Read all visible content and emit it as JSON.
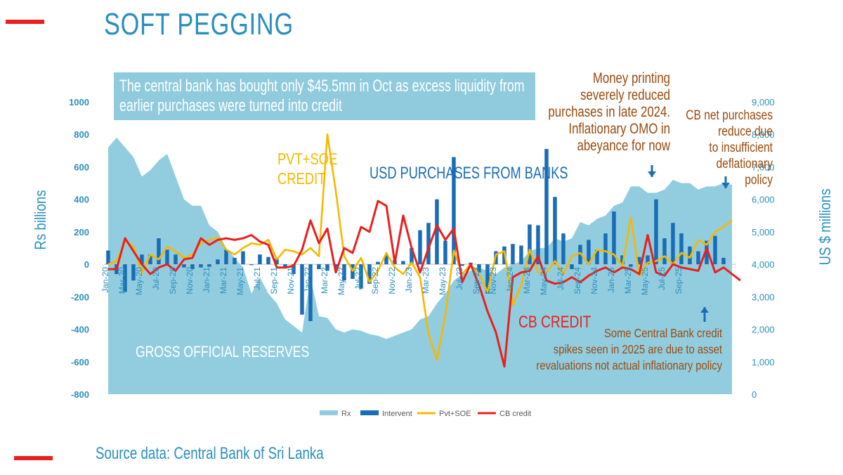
{
  "page": {
    "title": "SOFT PEGGING",
    "callout": "The central bank has bought only $45.5mn in Oct as excess liquidity from earlier purchases were turned into credit",
    "source": "Source data: Central Bank of Sri Lanka",
    "accent_red": "#e8201e",
    "accent_blue": "#2a8fbd"
  },
  "chart_data": {
    "type": "combo",
    "title": "SOFT PEGGING",
    "ylabel_left": "Rs billions",
    "ylabel_right": "US $ millions",
    "ylim_left": [
      -800,
      1000
    ],
    "ylim_right": [
      0,
      9000
    ],
    "yticks_left": [
      "1000",
      "800",
      "600",
      "400",
      "200",
      "0",
      "-200",
      "-400",
      "-600",
      "-800"
    ],
    "yticks_right": [
      "9,000",
      "8,000",
      "7,000",
      "6,000",
      "5,000",
      "4,000",
      "3,000",
      "2,000",
      "1,000",
      "0"
    ],
    "x_tick_labels": [
      "Jan-20",
      "Mar-20",
      "May-20",
      "Jul-20",
      "Sep-20",
      "Nov-20",
      "Jan-21",
      "Mar-21",
      "May-21",
      "Jul-21",
      "Sep-21",
      "Nov-21",
      "Jan-22",
      "Mar-22",
      "May-22",
      "Jul-22",
      "Sep-22",
      "Nov-22",
      "Jan-23",
      "Mar-23",
      "May-23",
      "Jul-23",
      "Sep-23",
      "Nov-23",
      "Jan-24",
      "Mar-24",
      "May-24",
      "Jul-24",
      "Sep-24",
      "Nov-24",
      "Jan-25",
      "Mar-25",
      "May-25",
      "Jul-25",
      "Sep-25"
    ],
    "series": [
      {
        "name": "Rx",
        "axis": "right",
        "type": "area",
        "color": "#92cddf",
        "values": [
          7600,
          7900,
          7600,
          7300,
          6700,
          6900,
          7200,
          7400,
          6700,
          6000,
          5800,
          5800,
          5200,
          5000,
          4500,
          4200,
          3900,
          3100,
          3600,
          3100,
          2800,
          2300,
          2100,
          1900,
          3600,
          2400,
          2350,
          2000,
          1900,
          2000,
          1950,
          1850,
          1800,
          1700,
          1800,
          1900,
          2000,
          2300,
          2400,
          2800,
          3100,
          3500,
          3700,
          3800,
          3900,
          3800,
          3700,
          3900,
          4000,
          4100,
          4400,
          4500,
          4500,
          4800,
          4700,
          4800,
          5300,
          5200,
          5400,
          5500,
          5800,
          5900,
          6400,
          6400,
          6200,
          6200,
          6300,
          6600,
          6500,
          6500,
          6300,
          6400,
          6400,
          6500,
          6450
        ]
      },
      {
        "name": "Intervent",
        "axis": "left",
        "type": "bar",
        "color": "#1a6db5",
        "values": [
          85,
          -60,
          -170,
          -100,
          60,
          60,
          160,
          90,
          60,
          -20,
          -30,
          -20,
          -15,
          30,
          90,
          40,
          80,
          -5,
          60,
          45,
          35,
          -25,
          -60,
          -310,
          -350,
          -30,
          -40,
          -20,
          -100,
          -90,
          -150,
          -120,
          15,
          60,
          25,
          20,
          100,
          210,
          255,
          400,
          145,
          660,
          -10,
          10,
          -50,
          -180,
          80,
          110,
          125,
          115,
          245,
          240,
          710,
          415,
          190,
          -30,
          120,
          150,
          90,
          190,
          325,
          55,
          -15,
          45,
          55,
          400,
          160,
          255,
          190,
          110,
          80,
          145,
          175,
          40
        ]
      },
      {
        "name": "Pvt+SOE",
        "axis": "left",
        "type": "line",
        "color": "#f5b800",
        "values": [
          0,
          20,
          140,
          110,
          -55,
          60,
          30,
          110,
          80,
          40,
          60,
          130,
          150,
          165,
          90,
          60,
          100,
          130,
          120,
          150,
          30,
          90,
          80,
          60,
          100,
          50,
          800,
          450,
          50,
          -40,
          40,
          -110,
          -40,
          70,
          -20,
          -60,
          10,
          -80,
          -430,
          -590,
          -310,
          85,
          -60,
          0,
          -60,
          -170,
          60,
          80,
          -250,
          -130,
          90,
          -50,
          -50,
          20,
          -60,
          50,
          70,
          0,
          90,
          80,
          60,
          -10,
          290,
          -70,
          10,
          20,
          50,
          0,
          70,
          40,
          150,
          120,
          200,
          230,
          270
        ]
      },
      {
        "name": "CB credit",
        "axis": "left",
        "type": "line",
        "color": "#e8201e",
        "values": [
          -30,
          -30,
          160,
          80,
          0,
          -60,
          -20,
          0,
          -40,
          30,
          40,
          160,
          120,
          150,
          160,
          150,
          160,
          180,
          140,
          120,
          -20,
          -20,
          -10,
          90,
          270,
          130,
          220,
          -50,
          100,
          70,
          230,
          200,
          390,
          360,
          10,
          300,
          100,
          -50,
          100,
          240,
          150,
          220,
          -110,
          0,
          -130,
          -290,
          -420,
          -630,
          -80,
          -50,
          -40,
          50,
          -100,
          -120,
          -110,
          -80,
          -110,
          -70,
          -40,
          -20,
          -50,
          -20,
          -30,
          -60,
          180,
          -50,
          -70,
          0,
          -20,
          -30,
          -40,
          100,
          -50,
          -20,
          -60,
          -100
        ]
      }
    ],
    "annotations": [
      {
        "text": "PVT+SOE CREDIT",
        "lines": [
          "PVT+SOE",
          "CREDIT"
        ],
        "color": "#f5b800"
      },
      {
        "text": "USD PURCHASES FROM BANKS",
        "color": "#1a6db5"
      },
      {
        "text": "GROSS OFFICIAL RESERVES",
        "color": "#ffffff"
      },
      {
        "text": "CB CREDIT",
        "color": "#e8201e"
      },
      {
        "text": "Money printing severely reduced purchases in late 2024. Inflationary OMO in abeyance for now",
        "lines": [
          "Money printing",
          "severely reduced",
          "purchases in late 2024.",
          "Inflationary OMO in",
          "abeyance for now"
        ],
        "color": "#9a4a0c"
      },
      {
        "text": "CB net purchases reduce due to insufficient deflationary policy",
        "lines": [
          "CB net purchases",
          "reduce due",
          "to insufficient",
          "deflationary",
          "policy"
        ],
        "color": "#9a4a0c"
      },
      {
        "text": "Some Central Bank credit spikes seen in 2025 are due to asset revaluations not actual inflationary policy",
        "lines": [
          "Some Central Bank credit",
          "spikes seen in 2025 are due to asset",
          "revaluations not actual inflationary policy"
        ],
        "color": "#9a4a0c"
      }
    ],
    "legend": [
      "Rx",
      "Intervent",
      "Pvt+SOE",
      "CB credit"
    ],
    "legend_position": "bottom"
  }
}
